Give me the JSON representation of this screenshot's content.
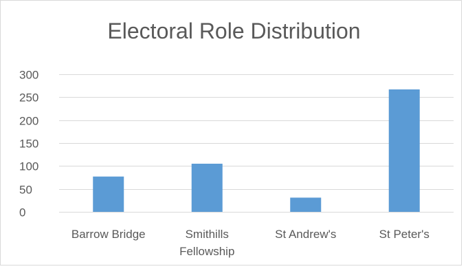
{
  "chart_data": {
    "type": "bar",
    "title": "Electoral Role Distribution",
    "categories": [
      "Barrow Bridge",
      "Smithills\nFellowship",
      "St Andrew's",
      "St Peter's"
    ],
    "values": [
      77,
      105,
      31,
      267
    ],
    "xlabel": "",
    "ylabel": "",
    "ylim": [
      0,
      300
    ],
    "yticks": [
      0,
      50,
      100,
      150,
      200,
      250,
      300
    ],
    "grid": true,
    "legend": "none",
    "bar_color": "#5b9bd5",
    "grid_color": "#d9d9d9",
    "text_color": "#595959"
  }
}
